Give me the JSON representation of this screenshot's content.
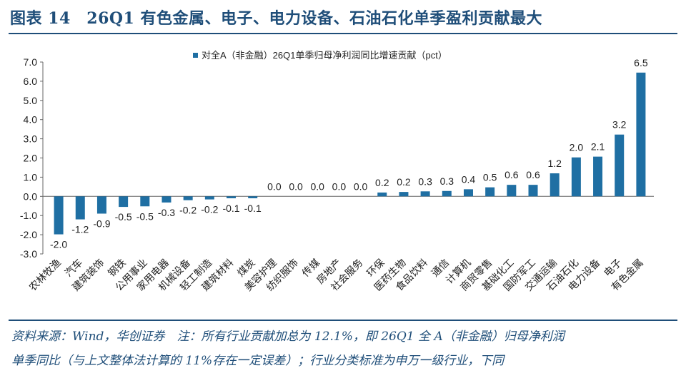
{
  "header": {
    "title": "图表 14　26Q1 有色金属、电子、电力设备、石油石化单季盈利贡献最大"
  },
  "footer": {
    "line1": "资料来源：Wind，华创证券　注：所有行业贡献加总为 12.1%，即 26Q1 全 A（非金融）归母净利润",
    "line2": "单季同比（与上文整体法计算的 11%存在一定误差）；行业分类标准为申万一级行业，下同"
  },
  "chart_data": {
    "type": "bar",
    "title": "",
    "xlabel": "",
    "ylabel": "",
    "ylim": [
      -3.0,
      7.0
    ],
    "yticks": [
      "-3.0",
      "-2.0",
      "-1.0",
      "0.0",
      "1.0",
      "2.0",
      "3.0",
      "4.0",
      "5.0",
      "6.0",
      "7.0"
    ],
    "grid": false,
    "legend_position": "top",
    "categories": [
      "农林牧渔",
      "汽车",
      "建筑装饰",
      "钢铁",
      "公用事业",
      "家用电器",
      "机械设备",
      "轻工制造",
      "建筑材料",
      "煤炭",
      "美容护理",
      "纺织服饰",
      "传媒",
      "房地产",
      "社会服务",
      "环保",
      "医药生物",
      "食品饮料",
      "通信",
      "计算机",
      "商贸零售",
      "基础化工",
      "国防军工",
      "交通运输",
      "石油石化",
      "电力设备",
      "电子",
      "有色金属"
    ],
    "series": [
      {
        "name": "对全A（非金融）26Q1单季归母净利润同比增速贡献（pct）",
        "color": "#1f6fa3",
        "values": [
          -1.98,
          -1.2,
          -0.9,
          -0.55,
          -0.52,
          -0.32,
          -0.2,
          -0.16,
          -0.1,
          -0.1,
          0.0,
          0.0,
          0.0,
          0.0,
          0.0,
          0.2,
          0.23,
          0.26,
          0.28,
          0.37,
          0.47,
          0.6,
          0.6,
          1.2,
          2.03,
          2.07,
          3.22,
          6.45
        ],
        "labels": [
          "-2.0",
          "-1.2",
          "-0.9",
          "-0.5",
          "-0.5",
          "-0.3",
          "-0.2",
          "-0.2",
          "-0.1",
          "-0.1",
          "0.0",
          "0.0",
          "0.0",
          "0.0",
          "0.0",
          "0.2",
          "0.2",
          "0.3",
          "0.3",
          "0.4",
          "0.5",
          "0.6",
          "0.6",
          "1.2",
          "2.0",
          "2.1",
          "3.2",
          "6.5"
        ]
      }
    ]
  }
}
